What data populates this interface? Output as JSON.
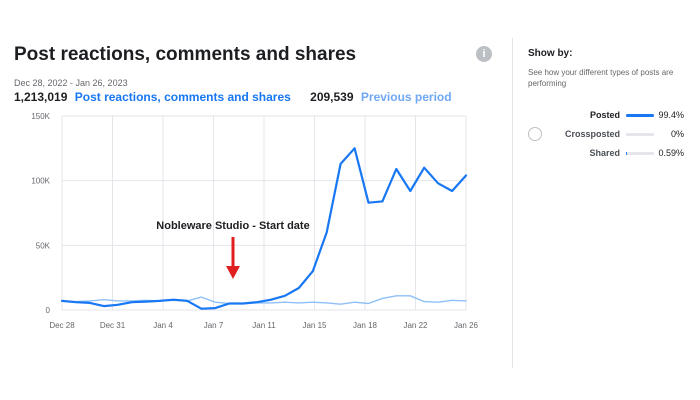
{
  "header": {
    "title": "Post reactions, comments and shares",
    "date_range": "Dec 28, 2022 - Jan 26, 2023",
    "current_total": "1,213,019",
    "current_label": "Post reactions, comments and shares",
    "previous_total": "209,539",
    "previous_label": "Previous period",
    "info_icon": "info-icon"
  },
  "chart_data": {
    "type": "line",
    "x_ticks": [
      "Dec 28",
      "Dec 31",
      "Jan 4",
      "Jan 7",
      "Jan 11",
      "Jan 15",
      "Jan 18",
      "Jan 22",
      "Jan 26"
    ],
    "y_ticks": [
      "0",
      "50K",
      "100K",
      "150K"
    ],
    "ylim": [
      0,
      150000
    ],
    "grid": true,
    "annotation": "Nobleware Studio - Start date",
    "series": [
      {
        "role": "current",
        "color": "#1877f2",
        "values": [
          7000,
          6000,
          5500,
          3000,
          4000,
          6000,
          6500,
          7000,
          8000,
          7000,
          1000,
          1500,
          5000,
          5000,
          6000,
          8000,
          11000,
          17000,
          30000,
          60000,
          113000,
          125000,
          83000,
          84000,
          109000,
          92000,
          110000,
          98000,
          92000,
          104000
        ]
      },
      {
        "role": "previous",
        "color": "#8ec0f7",
        "values": [
          7000,
          6500,
          7000,
          8000,
          7000,
          7000,
          7500,
          7000,
          7500,
          7000,
          10000,
          6000,
          5000,
          5000,
          5500,
          5500,
          6000,
          5500,
          6000,
          5500,
          4500,
          6000,
          5000,
          9000,
          11000,
          11000,
          6500,
          6000,
          7500,
          7000
        ]
      }
    ]
  },
  "sidebar": {
    "title": "Show by:",
    "description": "See how your different types of posts are performing",
    "items": [
      {
        "label": "Posted",
        "percent": "99.4%",
        "fraction": 0.994,
        "selected": true
      },
      {
        "label": "Crossposted",
        "percent": "0%",
        "fraction": 0,
        "selected": false
      },
      {
        "label": "Shared",
        "percent": "0.59%",
        "fraction": 0.0059,
        "selected": false
      }
    ]
  }
}
